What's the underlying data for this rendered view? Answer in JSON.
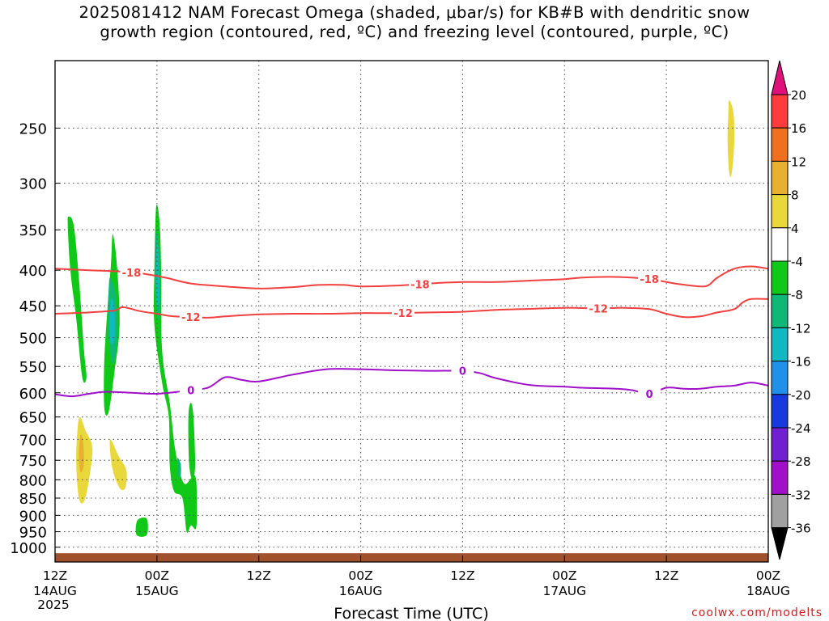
{
  "chart_data": {
    "type": "heatmap",
    "title_line1": "2025081412 NAM Forecast Omega (shaded, μbar/s) for KB#B with dendritic snow",
    "title_line2": "growth region (contoured, red, ºC) and freezing level (contoured, purple, ºC)",
    "xlabel": "Forecast Time (UTC)",
    "ylabel": "",
    "y_scale": "log-pressure",
    "ylim": [
      1050,
      200
    ],
    "y_ticks": [
      250,
      300,
      350,
      400,
      450,
      500,
      550,
      600,
      650,
      700,
      750,
      800,
      850,
      900,
      950,
      1000
    ],
    "x_range_hours": [
      0,
      84
    ],
    "x_ticks": [
      {
        "hour": 0,
        "label": "12Z",
        "sub": "14AUG",
        "sub2": "2025"
      },
      {
        "hour": 12,
        "label": "00Z",
        "sub": "15AUG",
        "sub2": ""
      },
      {
        "hour": 24,
        "label": "12Z",
        "sub": "",
        "sub2": ""
      },
      {
        "hour": 36,
        "label": "00Z",
        "sub": "16AUG",
        "sub2": ""
      },
      {
        "hour": 48,
        "label": "12Z",
        "sub": "",
        "sub2": ""
      },
      {
        "hour": 60,
        "label": "00Z",
        "sub": "17AUG",
        "sub2": ""
      },
      {
        "hour": 72,
        "label": "12Z",
        "sub": "",
        "sub2": ""
      },
      {
        "hour": 84,
        "label": "00Z",
        "sub": "18AUG",
        "sub2": ""
      }
    ],
    "grid": true,
    "colorbar": {
      "labels": [
        "20",
        "16",
        "12",
        "8",
        "4",
        "-4",
        "-8",
        "-12",
        "-16",
        "-20",
        "-24",
        "-28",
        "-32",
        "-36"
      ],
      "colors_top_to_bottom": [
        "#ff3b3b",
        "#f07020",
        "#e8b030",
        "#e8d83c",
        "#ffffff",
        "#10c818",
        "#10b878",
        "#10b8c0",
        "#2090e8",
        "#1838e0",
        "#7020d0",
        "#a010c8",
        "#a0a0a0"
      ],
      "top_arrow_color": "#e0107a",
      "bottom_arrow_color": "#000000"
    },
    "contours": [
      {
        "value": -18,
        "color": "#f04040",
        "label": "-18",
        "points": [
          [
            0,
            398
          ],
          [
            4,
            400
          ],
          [
            8,
            402
          ],
          [
            10,
            404
          ],
          [
            13,
            410
          ],
          [
            16,
            418
          ],
          [
            20,
            422
          ],
          [
            24,
            425
          ],
          [
            28,
            423
          ],
          [
            31,
            420
          ],
          [
            34,
            420
          ],
          [
            36,
            422
          ],
          [
            40,
            421
          ],
          [
            44,
            418
          ],
          [
            48,
            416
          ],
          [
            52,
            416
          ],
          [
            56,
            414
          ],
          [
            60,
            412
          ],
          [
            62,
            410
          ],
          [
            66,
            409
          ],
          [
            70,
            412
          ],
          [
            73,
            418
          ],
          [
            76,
            422
          ],
          [
            77,
            420
          ],
          [
            78,
            410
          ],
          [
            80,
            398
          ],
          [
            82,
            395
          ],
          [
            84,
            398
          ]
        ],
        "label_hours": [
          9,
          43,
          70
        ]
      },
      {
        "value": -12,
        "color": "#f04040",
        "label": "-12",
        "points": [
          [
            0,
            462
          ],
          [
            4,
            460
          ],
          [
            7,
            457
          ],
          [
            8,
            452
          ],
          [
            10,
            458
          ],
          [
            12,
            462
          ],
          [
            14,
            466
          ],
          [
            18,
            468
          ],
          [
            20,
            466
          ],
          [
            24,
            463
          ],
          [
            28,
            462
          ],
          [
            32,
            462
          ],
          [
            36,
            461
          ],
          [
            40,
            461
          ],
          [
            44,
            460
          ],
          [
            48,
            459
          ],
          [
            52,
            456
          ],
          [
            55,
            455
          ],
          [
            60,
            453
          ],
          [
            64,
            454
          ],
          [
            67,
            453
          ],
          [
            70,
            455
          ],
          [
            72,
            462
          ],
          [
            74,
            467
          ],
          [
            76,
            466
          ],
          [
            78,
            460
          ],
          [
            80,
            455
          ],
          [
            81,
            445
          ],
          [
            82,
            440
          ],
          [
            84,
            440
          ]
        ],
        "label_hours": [
          16,
          41,
          64
        ]
      },
      {
        "value": 0,
        "color": "#a010c8",
        "label": "0",
        "points": [
          [
            0,
            603
          ],
          [
            2,
            607
          ],
          [
            4,
            602
          ],
          [
            6,
            598
          ],
          [
            9,
            600
          ],
          [
            12,
            602
          ],
          [
            15,
            597
          ],
          [
            18,
            590
          ],
          [
            20,
            570
          ],
          [
            22,
            575
          ],
          [
            24,
            578
          ],
          [
            28,
            565
          ],
          [
            32,
            555
          ],
          [
            36,
            555
          ],
          [
            40,
            557
          ],
          [
            44,
            558
          ],
          [
            48,
            558
          ],
          [
            50,
            562
          ],
          [
            52,
            572
          ],
          [
            56,
            585
          ],
          [
            60,
            588
          ],
          [
            62,
            590
          ],
          [
            66,
            592
          ],
          [
            68,
            595
          ],
          [
            70,
            602
          ],
          [
            72,
            590
          ],
          [
            74,
            592
          ],
          [
            76,
            592
          ],
          [
            78,
            588
          ],
          [
            80,
            586
          ],
          [
            82,
            580
          ],
          [
            84,
            586
          ]
        ],
        "label_hours": [
          16,
          48,
          70
        ]
      }
    ],
    "shaded_regions": [
      {
        "value_range": "-4 to -8",
        "color": "#10c818",
        "points": [
          [
            1.6,
            335
          ],
          [
            2.2,
            345
          ],
          [
            2.8,
            410
          ],
          [
            3.4,
            520
          ],
          [
            3.7,
            570
          ],
          [
            3.2,
            570
          ],
          [
            2.5,
            470
          ],
          [
            1.8,
            400
          ],
          [
            1.5,
            345
          ]
        ]
      },
      {
        "value_range": "-4 to -8",
        "color": "#10c818",
        "points": [
          [
            6.8,
            355
          ],
          [
            7.3,
            395
          ],
          [
            7.6,
            480
          ],
          [
            7.0,
            560
          ],
          [
            6.3,
            640
          ],
          [
            5.8,
            630
          ],
          [
            5.8,
            540
          ],
          [
            6.2,
            450
          ],
          [
            6.6,
            390
          ]
        ]
      },
      {
        "value_range": "-8 to -12",
        "color": "#10b878",
        "points": [
          [
            6.5,
            410
          ],
          [
            7.2,
            440
          ],
          [
            7.3,
            505
          ],
          [
            6.9,
            545
          ],
          [
            6.5,
            525
          ],
          [
            6.2,
            470
          ],
          [
            6.3,
            430
          ]
        ]
      },
      {
        "value_range": "-12 to -16",
        "color": "#10b8c0",
        "points": [
          [
            6.6,
            440
          ],
          [
            7.0,
            455
          ],
          [
            7.0,
            500
          ],
          [
            6.6,
            510
          ],
          [
            6.4,
            480
          ]
        ]
      },
      {
        "value_range": "-4 to -8",
        "color": "#10c818",
        "points": [
          [
            11.9,
            325
          ],
          [
            12.3,
            340
          ],
          [
            12.5,
            400
          ],
          [
            12.6,
            520
          ],
          [
            13.5,
            620
          ],
          [
            14.2,
            730
          ],
          [
            15.2,
            810
          ],
          [
            16.5,
            790
          ],
          [
            16.7,
            880
          ],
          [
            16.6,
            940
          ],
          [
            16.0,
            930
          ],
          [
            15.5,
            950
          ],
          [
            15.0,
            850
          ],
          [
            14.0,
            830
          ],
          [
            13.5,
            760
          ],
          [
            13.4,
            650
          ],
          [
            12.6,
            580
          ],
          [
            11.7,
            480
          ],
          [
            11.7,
            400
          ]
        ]
      },
      {
        "value_range": "-4 to -8",
        "color": "#10c818",
        "points": [
          [
            16.0,
            620
          ],
          [
            16.3,
            650
          ],
          [
            16.5,
            760
          ],
          [
            16.2,
            800
          ],
          [
            15.8,
            760
          ],
          [
            15.7,
            650
          ]
        ]
      },
      {
        "value_range": "-8 to -12",
        "color": "#10b878",
        "points": [
          [
            11.9,
            350
          ],
          [
            12.3,
            380
          ],
          [
            12.4,
            450
          ],
          [
            12.1,
            470
          ],
          [
            11.8,
            420
          ]
        ]
      },
      {
        "value_range": "-12 to -16",
        "color": "#10b8c0",
        "points": [
          [
            12.0,
            370
          ],
          [
            12.2,
            390
          ],
          [
            12.3,
            440
          ],
          [
            12.0,
            450
          ],
          [
            11.9,
            410
          ]
        ]
      },
      {
        "value_range": "-8 to -12",
        "color": "#10b878",
        "points": [
          [
            14.4,
            745
          ],
          [
            14.8,
            760
          ],
          [
            14.8,
            790
          ],
          [
            14.5,
            790
          ]
        ]
      },
      {
        "value_range": "-4 to -8",
        "color": "#10c818",
        "points": [
          [
            9.7,
            915
          ],
          [
            10.8,
            910
          ],
          [
            10.8,
            960
          ],
          [
            9.6,
            960
          ]
        ]
      },
      {
        "value_range": "4 to 8",
        "color": "#e8d83c",
        "points": [
          [
            2.9,
            650
          ],
          [
            3.6,
            680
          ],
          [
            4.4,
            720
          ],
          [
            4.0,
            800
          ],
          [
            3.4,
            860
          ],
          [
            2.8,
            850
          ],
          [
            2.5,
            760
          ],
          [
            2.6,
            690
          ]
        ]
      },
      {
        "value_range": "8 to 12",
        "color": "#e8b030",
        "points": [
          [
            3.0,
            690
          ],
          [
            3.3,
            705
          ],
          [
            3.4,
            760
          ],
          [
            3.0,
            780
          ],
          [
            2.8,
            740
          ]
        ]
      },
      {
        "value_range": "4 to 8",
        "color": "#e8d83c",
        "points": [
          [
            6.5,
            700
          ],
          [
            7.5,
            740
          ],
          [
            8.4,
            775
          ],
          [
            8.3,
            820
          ],
          [
            7.7,
            825
          ],
          [
            7.0,
            790
          ],
          [
            6.6,
            750
          ]
        ]
      },
      {
        "value_range": "4 to 8",
        "color": "#e8d83c",
        "points": [
          [
            79.4,
            228
          ],
          [
            79.9,
            238
          ],
          [
            80.0,
            262
          ],
          [
            79.7,
            290
          ],
          [
            79.4,
            290
          ],
          [
            79.2,
            260
          ],
          [
            79.3,
            238
          ]
        ]
      }
    ],
    "surface_color": "#a0522d",
    "surface_top_hpa": 1020
  },
  "credit": "coolwx.com/modelts"
}
